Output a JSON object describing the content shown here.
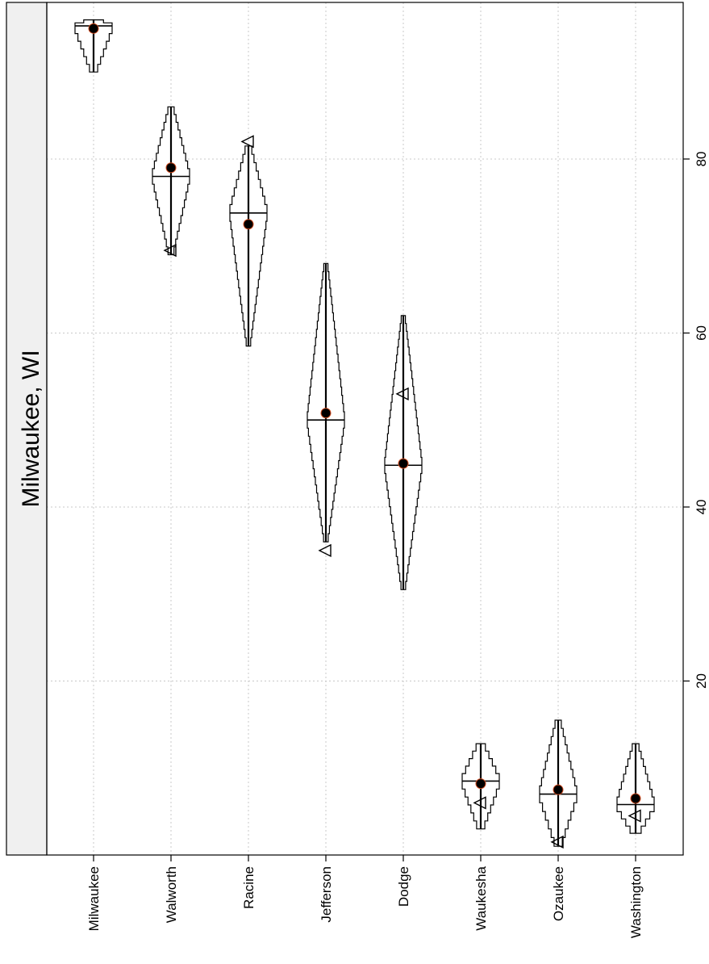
{
  "chart_data": {
    "type": "box-percentile",
    "panel_title": "Milwaukee, WI",
    "categories": [
      "Milwaukee",
      "Walworth",
      "Racine",
      "Jefferson",
      "Dodge",
      "Waukesha",
      "Ozaukee",
      "Washington"
    ],
    "value_axis": {
      "ticks": [
        20,
        40,
        60,
        80
      ],
      "tick_labels": [
        "20",
        "40",
        "60",
        "80"
      ],
      "range": [
        0,
        98
      ],
      "grid": true
    },
    "series": [
      {
        "category": "Milwaukee",
        "min": 90,
        "max": 96,
        "median": 95.3,
        "mean": 95.0,
        "reference": null
      },
      {
        "category": "Walworth",
        "min": 69,
        "max": 86,
        "median": 78.0,
        "mean": 79.0,
        "reference": 69.5
      },
      {
        "category": "Racine",
        "min": 58.5,
        "max": 81.5,
        "median": 73.8,
        "mean": 72.5,
        "reference": 82.0
      },
      {
        "category": "Jefferson",
        "min": 36,
        "max": 68,
        "median": 50.0,
        "mean": 50.8,
        "reference": 35.0
      },
      {
        "category": "Dodge",
        "min": 30.5,
        "max": 62,
        "median": 44.8,
        "mean": 45.0,
        "reference": 53.0
      },
      {
        "category": "Waukesha",
        "min": 3.0,
        "max": 12.8,
        "median": 8.5,
        "mean": 8.2,
        "reference": 6.0
      },
      {
        "category": "Ozaukee",
        "min": 1.0,
        "max": 15.5,
        "median": 7.0,
        "mean": 7.5,
        "reference": 1.5
      },
      {
        "category": "Washington",
        "min": 2.5,
        "max": 12.8,
        "median": 5.8,
        "mean": 6.5,
        "reference": 4.5
      }
    ],
    "legend": null,
    "colors": {
      "outline": "#000000",
      "mean_dot": "#000000",
      "grid": "#c8c8c8",
      "strip": "#f0f0f0",
      "median_accent": "#d24b1e"
    }
  }
}
